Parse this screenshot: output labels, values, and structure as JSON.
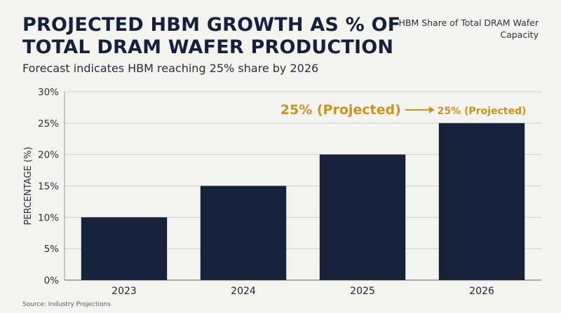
{
  "header": {
    "title": "PROJECTED HBM GROWTH AS % OF TOTAL DRAM WAFER PRODUCTION",
    "subtitle": "Forecast indicates HBM reaching 25% share by 2026",
    "legend_text": "HBM Share of Total DRAM Wafer Capacity"
  },
  "footer": {
    "source": "Source: Industry Projections"
  },
  "colors": {
    "bar": "#16213a",
    "accent": "#c8951f",
    "grid": "#cfcfcb"
  },
  "chart_data": {
    "type": "bar",
    "categories": [
      "2023",
      "2024",
      "2025",
      "2026"
    ],
    "values": [
      10,
      15,
      20,
      25
    ],
    "ylabel": "PERCENTAGE (%)",
    "ylim": [
      0,
      30
    ],
    "yticks": [
      "0%",
      "5%",
      "10%",
      "15%",
      "20%",
      "25%",
      "30%"
    ],
    "grid": true,
    "annotations": [
      {
        "category": "2026",
        "text": "25% (Projected)"
      },
      {
        "category": "2026",
        "text": "25% (Projected)",
        "role": "callout"
      }
    ]
  }
}
